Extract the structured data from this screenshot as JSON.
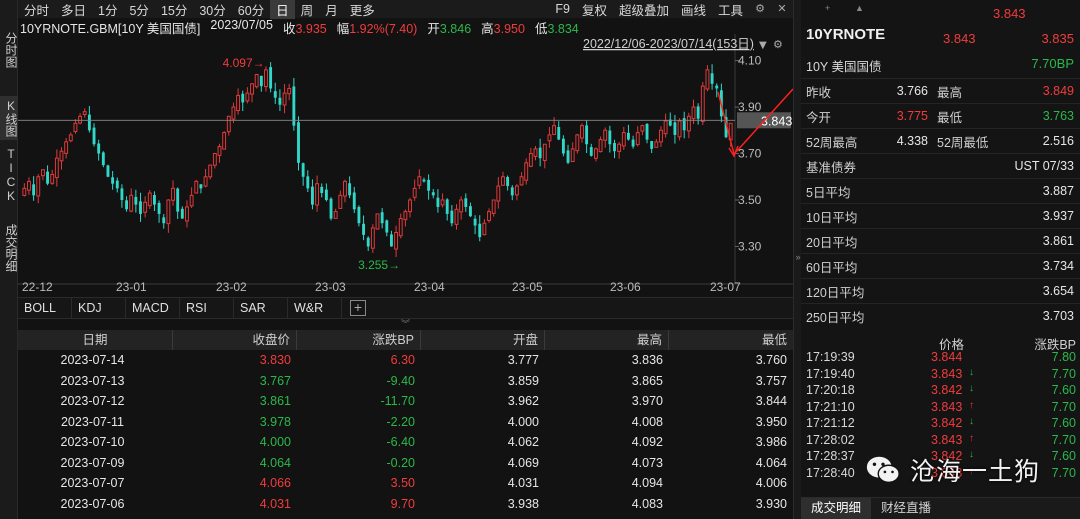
{
  "vertical_tabs": [
    {
      "label": "分时图",
      "active": false
    },
    {
      "label": "K线图",
      "active": true
    },
    {
      "label": "TICK",
      "active": false
    },
    {
      "label": "成交明细",
      "active": false
    }
  ],
  "toolbar": {
    "periods": [
      "分时",
      "多日",
      "1分",
      "5分",
      "15分",
      "30分",
      "60分",
      "日",
      "周",
      "月",
      "更多"
    ],
    "active_period": "日",
    "right_items": [
      "F9",
      "复权",
      "超级叠加",
      "画线",
      "工具"
    ],
    "icons": [
      "gear-icon",
      "close-icon"
    ]
  },
  "info": {
    "symbol_text": "10YRNOTE.GBM[10Y 美国国债]",
    "date": "2023/07/05",
    "close_label": "收",
    "close_value": "3.935",
    "change_label": "幅",
    "change_value": "1.92%(7.40)",
    "open_label": "开",
    "open_value": "3.846",
    "high_label": "高",
    "high_value": "3.950",
    "low_label": "低",
    "low_value": "3.834"
  },
  "chart_data": {
    "type": "candlestick",
    "range_label": "2022/12/06-2023/07/14(153日)",
    "y_ticks": [
      "4.10",
      "3.90",
      "3.70",
      "3.50",
      "3.30"
    ],
    "ylim": [
      3.19,
      4.18
    ],
    "x_ticks": [
      "22-12",
      "23-01",
      "23-02",
      "23-03",
      "23-04",
      "23-05",
      "23-06",
      "23-07"
    ],
    "current_price": "3.843",
    "max_label": "4.097",
    "min_label": "3.255",
    "up_color": "#e03a3a",
    "down_color": "#2fd8c8",
    "closes": [
      3.55,
      3.58,
      3.52,
      3.6,
      3.63,
      3.57,
      3.61,
      3.68,
      3.71,
      3.75,
      3.78,
      3.83,
      3.86,
      3.88,
      3.8,
      3.74,
      3.7,
      3.65,
      3.6,
      3.57,
      3.55,
      3.5,
      3.46,
      3.52,
      3.48,
      3.44,
      3.49,
      3.53,
      3.48,
      3.44,
      3.4,
      3.5,
      3.55,
      3.45,
      3.42,
      3.47,
      3.52,
      3.58,
      3.55,
      3.6,
      3.65,
      3.7,
      3.73,
      3.79,
      3.86,
      3.9,
      3.95,
      3.92,
      3.96,
      4.0,
      4.04,
      3.99,
      4.06,
      3.98,
      3.94,
      3.91,
      3.96,
      3.98,
      3.82,
      3.66,
      3.6,
      3.55,
      3.48,
      3.57,
      3.53,
      3.5,
      3.42,
      3.45,
      3.52,
      3.58,
      3.52,
      3.46,
      3.4,
      3.35,
      3.3,
      3.38,
      3.44,
      3.4,
      3.36,
      3.3,
      3.36,
      3.42,
      3.45,
      3.5,
      3.55,
      3.6,
      3.58,
      3.54,
      3.52,
      3.47,
      3.5,
      3.44,
      3.4,
      3.46,
      3.5,
      3.47,
      3.43,
      3.39,
      3.34,
      3.4,
      3.45,
      3.5,
      3.56,
      3.6,
      3.56,
      3.52,
      3.56,
      3.6,
      3.66,
      3.7,
      3.72,
      3.68,
      3.74,
      3.78,
      3.82,
      3.76,
      3.7,
      3.66,
      3.72,
      3.78,
      3.82,
      3.74,
      3.69,
      3.72,
      3.76,
      3.8,
      3.74,
      3.71,
      3.74,
      3.79,
      3.76,
      3.73,
      3.79,
      3.82,
      3.76,
      3.72,
      3.75,
      3.8,
      3.84,
      3.82,
      3.78,
      3.84,
      3.8,
      3.86,
      3.9,
      3.85,
      3.99,
      4.06,
      4.0,
      3.98,
      3.86,
      3.77,
      3.83
    ],
    "grid": false
  },
  "indicator_tabs": [
    "BOLL",
    "KDJ",
    "MACD",
    "RSI",
    "SAR",
    "W&R"
  ],
  "table": {
    "columns": [
      "日期",
      "收盘价",
      "涨跌BP",
      "开盘",
      "最高",
      "最低"
    ],
    "rows": [
      {
        "date": "2023-07-14",
        "close": "3.830",
        "chg": "6.30",
        "open": "3.777",
        "high": "3.836",
        "low": "3.760",
        "dir": "up"
      },
      {
        "date": "2023-07-13",
        "close": "3.767",
        "chg": "-9.40",
        "open": "3.859",
        "high": "3.865",
        "low": "3.757",
        "dir": "down"
      },
      {
        "date": "2023-07-12",
        "close": "3.861",
        "chg": "-11.70",
        "open": "3.962",
        "high": "3.970",
        "low": "3.844",
        "dir": "down"
      },
      {
        "date": "2023-07-11",
        "close": "3.978",
        "chg": "-2.20",
        "open": "4.000",
        "high": "4.008",
        "low": "3.950",
        "dir": "down"
      },
      {
        "date": "2023-07-10",
        "close": "4.000",
        "chg": "-6.40",
        "open": "4.062",
        "high": "4.092",
        "low": "3.986",
        "dir": "down"
      },
      {
        "date": "2023-07-09",
        "close": "4.064",
        "chg": "-0.20",
        "open": "4.069",
        "high": "4.073",
        "low": "4.064",
        "dir": "down"
      },
      {
        "date": "2023-07-07",
        "close": "4.066",
        "chg": "3.50",
        "open": "4.031",
        "high": "4.094",
        "low": "4.006",
        "dir": "up"
      },
      {
        "date": "2023-07-06",
        "close": "4.031",
        "chg": "9.70",
        "open": "3.938",
        "high": "4.083",
        "low": "3.930",
        "dir": "up"
      }
    ]
  },
  "right_panel": {
    "symbol": "10YRNOTE",
    "name": "10Y 美国国债",
    "price_top": "3.843",
    "bid": "3.843",
    "ask": "3.835",
    "change_bp": "7.70BP",
    "stats": [
      {
        "l1": "昨收",
        "v1": "3.766",
        "c1": "white",
        "l2": "最高",
        "v2": "3.849",
        "c2": "red"
      },
      {
        "l1": "今开",
        "v1": "3.775",
        "c1": "red",
        "l2": "最低",
        "v2": "3.763",
        "c2": "green"
      },
      {
        "l1": "52周最高",
        "v1": "4.338",
        "c1": "white",
        "l2": "52周最低",
        "v2": "2.516",
        "c2": "white"
      },
      {
        "l1": "基准债券",
        "v1": "",
        "c1": "white",
        "l2": "",
        "v2": "UST 07/33",
        "c2": "white"
      },
      {
        "l1": "5日平均",
        "v1": "",
        "c1": "white",
        "l2": "",
        "v2": "3.887",
        "c2": "white"
      },
      {
        "l1": "10日平均",
        "v1": "",
        "c1": "white",
        "l2": "",
        "v2": "3.937",
        "c2": "white"
      },
      {
        "l1": "20日平均",
        "v1": "",
        "c1": "white",
        "l2": "",
        "v2": "3.861",
        "c2": "white"
      },
      {
        "l1": "60日平均",
        "v1": "",
        "c1": "white",
        "l2": "",
        "v2": "3.734",
        "c2": "white"
      },
      {
        "l1": "120日平均",
        "v1": "",
        "c1": "white",
        "l2": "",
        "v2": "3.654",
        "c2": "white"
      },
      {
        "l1": "250日平均",
        "v1": "",
        "c1": "white",
        "l2": "",
        "v2": "3.703",
        "c2": "white"
      }
    ],
    "ticks_header": {
      "price": "价格",
      "chg": "涨跌BP"
    },
    "ticks": [
      {
        "time": "17:19:39",
        "price": "3.844",
        "arrow": "",
        "chg": "7.80"
      },
      {
        "time": "17:19:40",
        "price": "3.843",
        "arrow": "down",
        "chg": "7.70"
      },
      {
        "time": "17:20:18",
        "price": "3.842",
        "arrow": "down",
        "chg": "7.60"
      },
      {
        "time": "17:21:10",
        "price": "3.843",
        "arrow": "up",
        "chg": "7.70"
      },
      {
        "time": "17:21:12",
        "price": "3.842",
        "arrow": "down",
        "chg": "7.60"
      },
      {
        "time": "17:28:02",
        "price": "3.843",
        "arrow": "up",
        "chg": "7.70"
      },
      {
        "time": "17:28:37",
        "price": "3.842",
        "arrow": "down",
        "chg": "7.60"
      },
      {
        "time": "17:28:40",
        "price": "3.843",
        "arrow": "up",
        "chg": "7.70"
      }
    ],
    "bottom_tabs": [
      "成交明细",
      "财经直播"
    ],
    "active_bottom_tab": "成交明细"
  },
  "watermark": {
    "text": "沧海一土狗",
    "icon": "wechat-icon"
  }
}
